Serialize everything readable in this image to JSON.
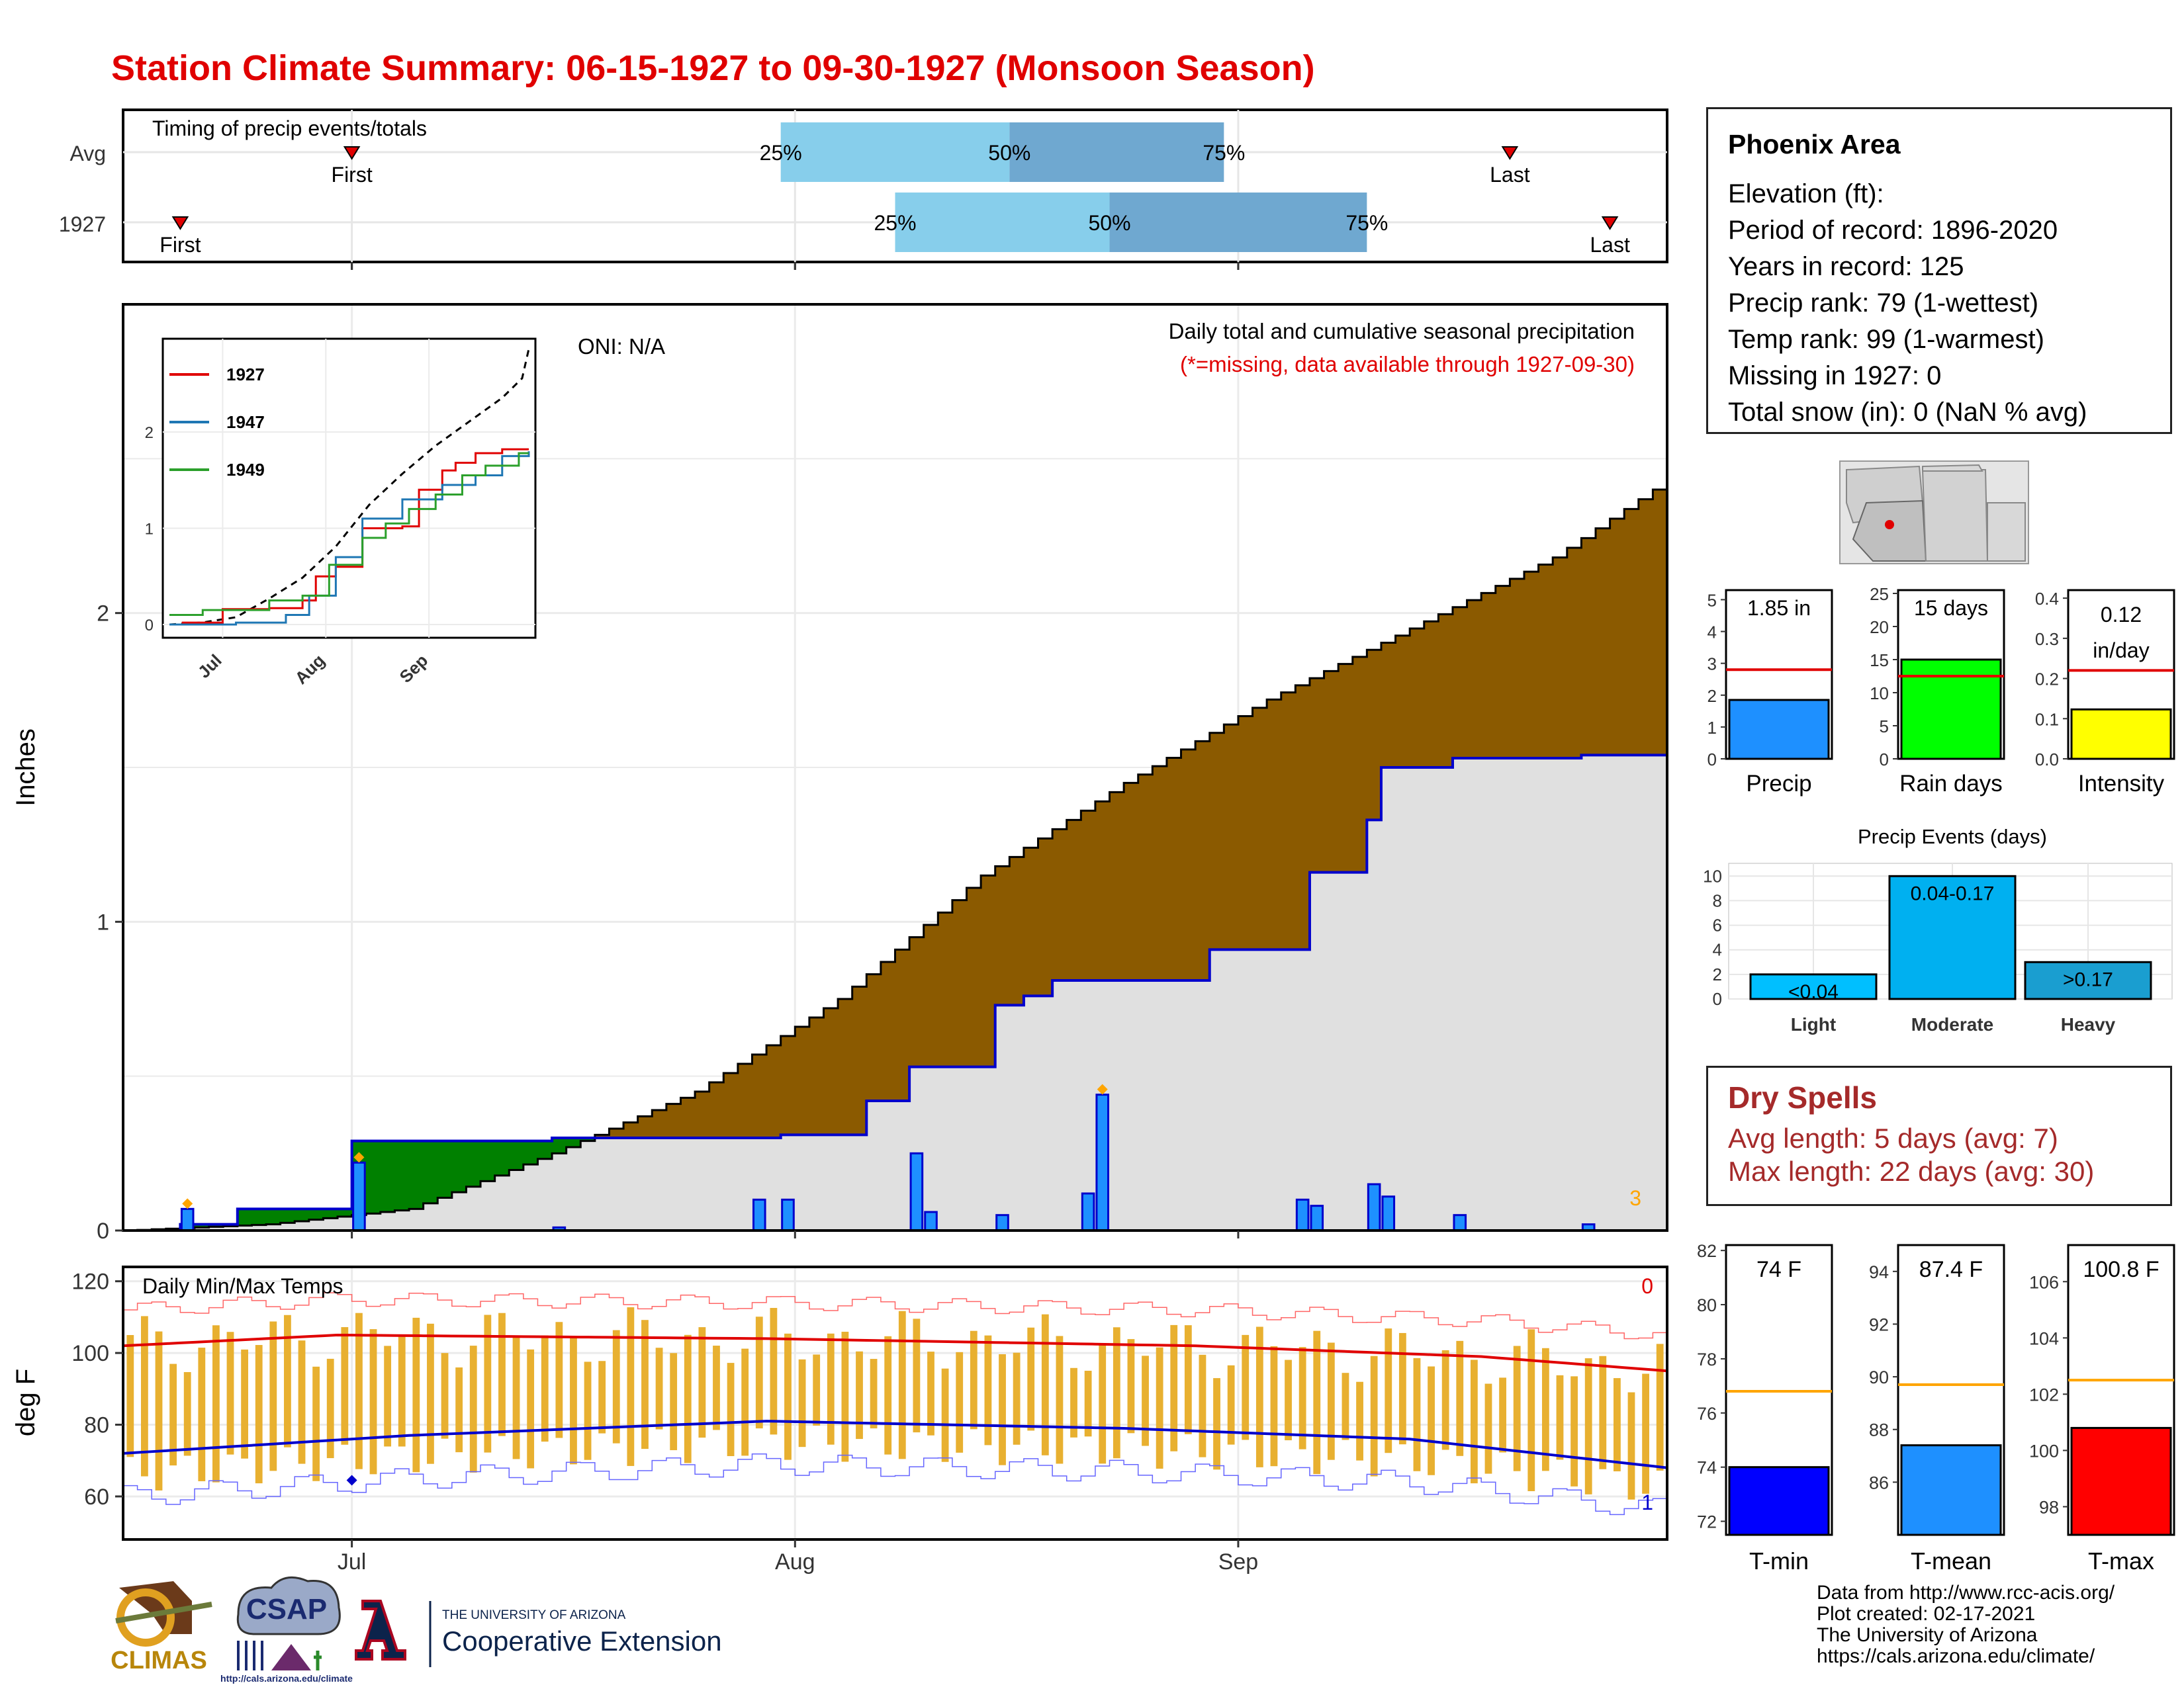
{
  "header": {
    "title": "Station Climate Summary: 06-15-1927 to 09-30-1927 (Monsoon Season)"
  },
  "colors": {
    "title_red": "#e00000",
    "avg_cum_fill": "#8b5a00",
    "above_avg_fill": "#008000",
    "year_fill": "#e0e0e0",
    "year_line": "#0000cc",
    "daily_bar": "#1e90ff",
    "temp_bar": "#e8b030",
    "tmax_line": "#e00000",
    "tmin_line": "#0000cc",
    "dry_text": "#a52a2a"
  },
  "timing_panel": {
    "title": "Timing of precip events/totals",
    "row_labels": [
      "Avg",
      "1927"
    ],
    "avg": {
      "first_day": 16,
      "q25_day": 46,
      "q50_day": 62,
      "q75_day": 77,
      "last_day": 97
    },
    "year": {
      "first_day": 4,
      "q25_day": 54,
      "q50_day": 69,
      "q75_day": 87,
      "last_day": 104
    },
    "first_label": "First",
    "last_label": "Last",
    "q_labels": [
      "25%",
      "50%",
      "75%"
    ]
  },
  "precip_panel": {
    "ylabel": "Inches",
    "oni": "ONI: N/A",
    "caption": "Daily total and cumulative seasonal precipitation",
    "missing_note": "(*=missing, data available through 1927-09-30)",
    "corner_count": "3",
    "y_ticks": [
      "0",
      "1",
      "2"
    ],
    "x_ticks": [
      "Jul",
      "Aug",
      "Sep"
    ]
  },
  "inset": {
    "legend": [
      "1927",
      "1947",
      "1949"
    ],
    "legend_colors": [
      "#e00000",
      "#1f77b4",
      "#2ca02c"
    ],
    "y_ticks": [
      "0",
      "1",
      "2"
    ],
    "x_ticks": [
      "Jul",
      "Aug",
      "Sep"
    ]
  },
  "temp_panel": {
    "title": "Daily Min/Max Temps",
    "ylabel": "deg F",
    "y_ticks": [
      "60",
      "80",
      "100",
      "120"
    ],
    "x_ticks": [
      "Jul",
      "Aug",
      "Sep"
    ],
    "max_count": "0",
    "min_count": "1"
  },
  "info": {
    "station": "Phoenix Area",
    "lines": [
      "Elevation (ft):",
      "Period of record: 1896-2020",
      "Years in record: 125",
      "Precip rank: 79 (1-wettest)",
      "Temp rank: 99 (1-warmest)",
      "Missing in 1927: 0",
      "Total snow (in): 0 (NaN % avg)"
    ]
  },
  "summary_bars": [
    {
      "label": "Precip",
      "value_text": "1.85 in",
      "value": 1.85,
      "avg": 2.8,
      "ymax": 5.3,
      "ticks": [
        0,
        1,
        2,
        3,
        4,
        5
      ],
      "color": "#1e90ff"
    },
    {
      "label": "Rain days",
      "value_text": "15 days",
      "value": 15,
      "avg": 12.5,
      "ymax": 25.5,
      "ticks": [
        0,
        5,
        10,
        15,
        20,
        25
      ],
      "color": "#00ff00"
    },
    {
      "label": "Intensity",
      "value_text": "0.12 in/day",
      "value_text_1": "0.12",
      "value_text_2": "in/day",
      "value": 0.123,
      "avg": 0.22,
      "ymax": 0.42,
      "ticks": [
        "0.0",
        "0.1",
        "0.2",
        "0.3",
        "0.4"
      ],
      "color": "#ffff00"
    }
  ],
  "precip_events": {
    "title": "Precip Events (days)",
    "categories": [
      "Light",
      "Moderate",
      "Heavy"
    ],
    "bar_labels": [
      "<0.04",
      "0.04-0.17",
      ">0.17"
    ],
    "values": [
      2,
      10,
      3
    ],
    "colors": [
      "#00bfff",
      "#00b0f0",
      "#1a9ed0"
    ],
    "y_ticks": [
      0,
      2,
      4,
      6,
      8,
      10
    ]
  },
  "dry_spells": {
    "title": "Dry Spells",
    "avg_line": "Avg length: 5 days (avg: 7)",
    "max_line": "Max length: 22 days (avg: 30)"
  },
  "temp_summary": [
    {
      "label": "T-min",
      "value_text": "74 F",
      "value": 74,
      "avg": 76.8,
      "ymin": 71.5,
      "ymax": 82.2,
      "ticks": [
        72,
        74,
        76,
        78,
        80,
        82
      ],
      "color": "#0000ff"
    },
    {
      "label": "T-mean",
      "value_text": "87.4 F",
      "value": 87.4,
      "avg": 89.7,
      "ymin": 84.0,
      "ymax": 95.0,
      "ticks": [
        86,
        88,
        90,
        92,
        94
      ],
      "color": "#1e90ff"
    },
    {
      "label": "T-max",
      "value_text": "100.8 F",
      "value": 100.8,
      "avg": 102.5,
      "ymin": 97.0,
      "ymax": 107.3,
      "ticks": [
        98,
        100,
        102,
        104,
        106
      ],
      "color": "#ff0000"
    }
  ],
  "credits": [
    "Data from http://www.rcc-acis.org/",
    "Plot created: 02-17-2021",
    "The University of Arizona",
    "https://cals.arizona.edu/climate/"
  ],
  "logos": {
    "climas": "CLIMAS",
    "csap": "CSAP",
    "csap_url": "http://cals.arizona.edu/climate",
    "ua_small": "THE UNIVERSITY OF ARIZONA",
    "ua_big": "Cooperative Extension"
  },
  "chart_data": [
    {
      "type": "area",
      "title": "Daily total and cumulative seasonal precipitation",
      "ylabel": "Inches",
      "ylim": [
        0,
        3.0
      ],
      "x_start": "1927-06-15",
      "x_end": "1927-09-30",
      "series": [
        {
          "name": "Average cumulative",
          "values_by_day": [
            [
              0,
              0.0
            ],
            [
              10,
              0.02
            ],
            [
              20,
              0.07
            ],
            [
              30,
              0.25
            ],
            [
              40,
              0.45
            ],
            [
              50,
              0.75
            ],
            [
              60,
              1.15
            ],
            [
              70,
              1.45
            ],
            [
              80,
              1.72
            ],
            [
              90,
              1.95
            ],
            [
              100,
              2.18
            ],
            [
              107,
              2.4
            ],
            [
              108,
              2.65
            ]
          ]
        },
        {
          "name": "1927 cumulative",
          "steps": [
            [
              0,
              0.0
            ],
            [
              4,
              0.02
            ],
            [
              8,
              0.07
            ],
            [
              16,
              0.29
            ],
            [
              30,
              0.3
            ],
            [
              44,
              0.3
            ],
            [
              46,
              0.31
            ],
            [
              52,
              0.42
            ],
            [
              55,
              0.53
            ],
            [
              61,
              0.73
            ],
            [
              63,
              0.76
            ],
            [
              65,
              0.81
            ],
            [
              69,
              0.81
            ],
            [
              76,
              0.91
            ],
            [
              82,
              0.91
            ],
            [
              83,
              1.16
            ],
            [
              87,
              1.33
            ],
            [
              88,
              1.5
            ],
            [
              93,
              1.53
            ],
            [
              99,
              1.53
            ],
            [
              102,
              1.54
            ],
            [
              108,
              1.85
            ]
          ]
        },
        {
          "name": "Daily precipitation",
          "days": [
            4,
            16,
            30,
            44,
            46,
            55,
            56,
            61,
            67,
            68,
            82,
            83,
            87,
            88,
            93,
            102
          ],
          "values": [
            0.07,
            0.22,
            0.01,
            0.1,
            0.1,
            0.25,
            0.06,
            0.05,
            0.12,
            0.44,
            0.1,
            0.08,
            0.15,
            0.11,
            0.05,
            0.02
          ]
        }
      ]
    },
    {
      "type": "bar",
      "title": "Daily Min/Max Temps",
      "ylabel": "deg F",
      "ylim": [
        48,
        124
      ],
      "series": [
        {
          "name": "Normal max",
          "values_by_day": [
            [
              0,
              102
            ],
            [
              15,
              105
            ],
            [
              45,
              104
            ],
            [
              75,
              102
            ],
            [
              95,
              99
            ],
            [
              108,
              95
            ]
          ]
        },
        {
          "name": "Normal min",
          "values_by_day": [
            [
              0,
              72
            ],
            [
              20,
              77
            ],
            [
              45,
              81
            ],
            [
              70,
              79
            ],
            [
              90,
              76
            ],
            [
              108,
              68
            ]
          ]
        }
      ]
    },
    {
      "type": "bar",
      "title": "Precip Events (days)",
      "categories": [
        "Light",
        "Moderate",
        "Heavy"
      ],
      "values": [
        2,
        10,
        3
      ]
    },
    {
      "type": "bar",
      "categories": [
        "Precip",
        "Rain days",
        "Intensity"
      ],
      "values": [
        1.85,
        15,
        0.12
      ]
    },
    {
      "type": "bar",
      "categories": [
        "T-min",
        "T-mean",
        "T-max"
      ],
      "values": [
        74,
        87.4,
        100.8
      ]
    }
  ]
}
